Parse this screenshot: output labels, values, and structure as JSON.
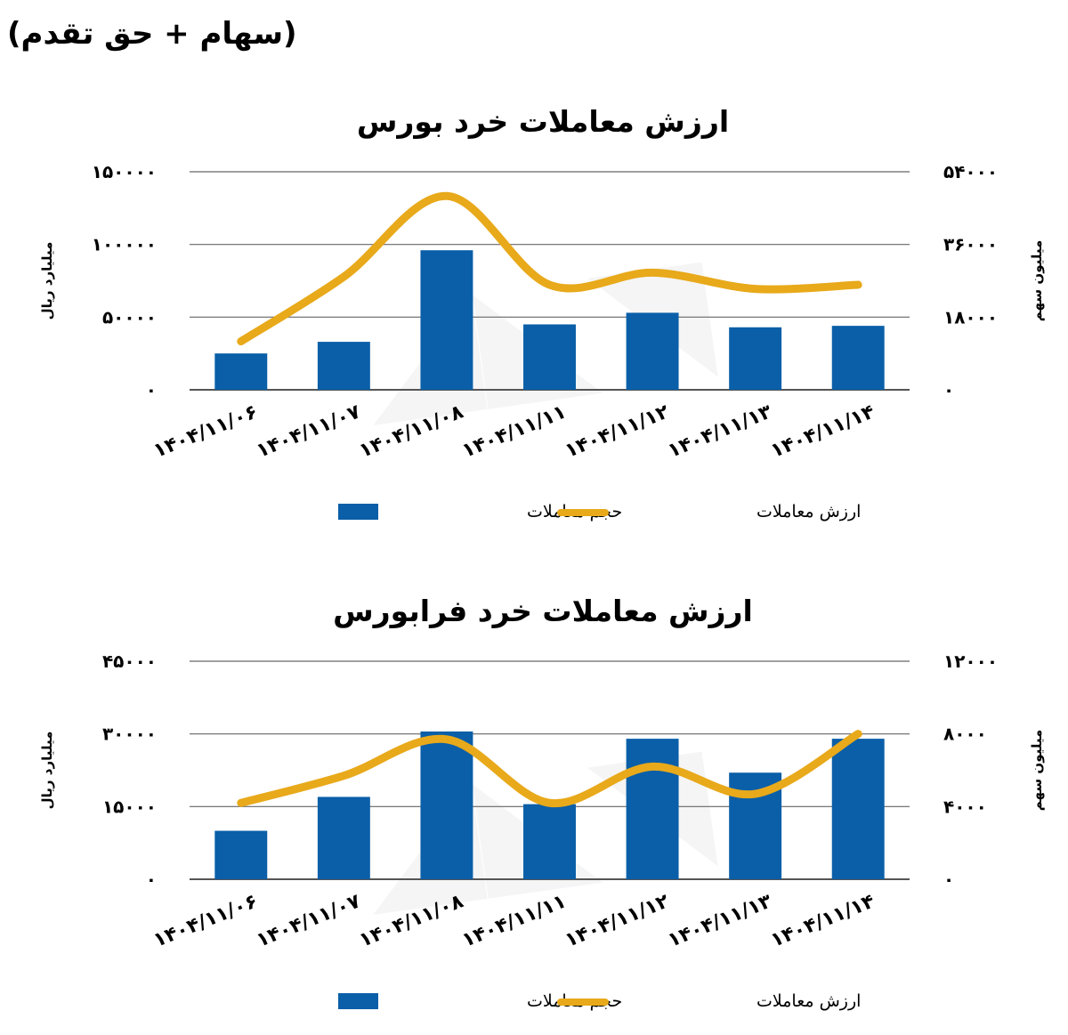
{
  "page_header": "(سهام + حق تقدم)",
  "chart_data": [
    {
      "type": "bar",
      "title": "ارزش معاملات خرد بورس",
      "categories": [
        "۱۴۰۴/۱۱/۰۶",
        "۱۴۰۴/۱۱/۰۷",
        "۱۴۰۴/۱۱/۰۸",
        "۱۴۰۴/۱۱/۱۱",
        "۱۴۰۴/۱۱/۱۲",
        "۱۴۰۴/۱۱/۱۳",
        "۱۴۰۴/۱۱/۱۴"
      ],
      "ylabel": "میلیارد ریال",
      "y2label": "میلیون سهم",
      "ylim": [
        0,
        150000
      ],
      "y2lim": [
        0,
        54000
      ],
      "yticks": [
        "0",
        "50000",
        "100000",
        "150000"
      ],
      "y2ticks": [
        "0",
        "18000",
        "36000",
        "54000"
      ],
      "grid": true,
      "legend_position": "bottom",
      "series": [
        {
          "name": "حجم معاملات",
          "kind": "bar",
          "axis": "left",
          "color": "#0a5fa8",
          "values": [
            25000,
            33000,
            96000,
            45000,
            53000,
            43000,
            44000
          ]
        },
        {
          "name": "ارزش معاملات",
          "kind": "line",
          "axis": "right",
          "color": "#e8a91a",
          "values": [
            12000,
            28000,
            48000,
            26000,
            29000,
            25000,
            26000
          ]
        }
      ]
    },
    {
      "type": "bar",
      "title": "ارزش معاملات خرد فرابورس",
      "categories": [
        "۱۴۰۴/۱۱/۰۶",
        "۱۴۰۴/۱۱/۰۷",
        "۱۴۰۴/۱۱/۰۸",
        "۱۴۰۴/۱۱/۱۱",
        "۱۴۰۴/۱۱/۱۲",
        "۱۴۰۴/۱۱/۱۳",
        "۱۴۰۴/۱۱/۱۴"
      ],
      "ylabel": "میلیارد ریال",
      "y2label": "میلیون سهم",
      "ylim": [
        0,
        45000
      ],
      "y2lim": [
        0,
        12000
      ],
      "yticks": [
        "0",
        "15000",
        "30000",
        "45000"
      ],
      "y2ticks": [
        "0",
        "4000",
        "8000",
        "12000"
      ],
      "grid": true,
      "legend_position": "bottom",
      "series": [
        {
          "name": "حجم معاملات",
          "kind": "bar",
          "axis": "left",
          "color": "#0a5fa8",
          "values": [
            10000,
            17000,
            30500,
            15500,
            29000,
            22000,
            29000
          ]
        },
        {
          "name": "ارزش معاملات",
          "kind": "line",
          "axis": "right",
          "color": "#e8a91a",
          "values": [
            4200,
            5700,
            7700,
            4200,
            6200,
            4700,
            8000
          ]
        }
      ]
    }
  ]
}
